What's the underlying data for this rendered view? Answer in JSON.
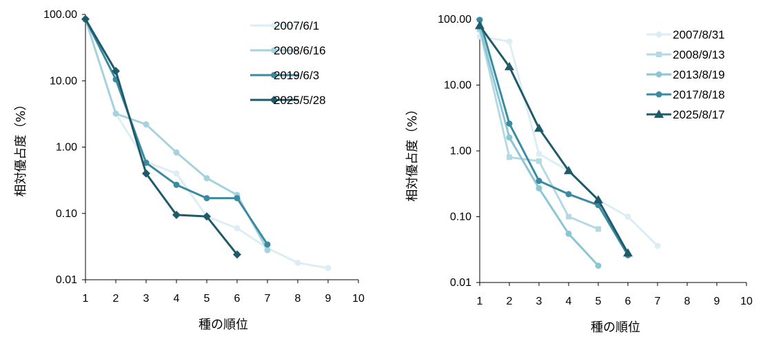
{
  "chart_data": [
    {
      "type": "line",
      "xlabel": "種の順位",
      "ylabel": "相対優占度（%）",
      "xlim": [
        1,
        10
      ],
      "ylim": [
        0.01,
        100
      ],
      "yscale": "log",
      "x_ticks": [
        "1",
        "2",
        "3",
        "4",
        "5",
        "6",
        "7",
        "8",
        "9",
        "10"
      ],
      "y_ticks": [
        "0.01",
        "0.10",
        "1.00",
        "10.00",
        "100.00"
      ],
      "grid": false,
      "legend_position": "top-right",
      "series": [
        {
          "name": "2007/6/1",
          "color": "#dceef3",
          "marker": "circle",
          "x": [
            1,
            2,
            3,
            4,
            5,
            6,
            7,
            8,
            9
          ],
          "y": [
            85,
            3.2,
            0.6,
            0.4,
            0.09,
            0.06,
            0.03,
            0.018,
            0.015
          ]
        },
        {
          "name": "2008/6/16",
          "color": "#a6d2de",
          "marker": "circle",
          "x": [
            1,
            2,
            3,
            4,
            5,
            6,
            7
          ],
          "y": [
            85,
            3.2,
            2.2,
            0.83,
            0.34,
            0.19,
            0.028
          ]
        },
        {
          "name": "2019/6/3",
          "color": "#3a8ba2",
          "marker": "circle",
          "x": [
            1,
            2,
            3,
            4,
            5,
            6,
            7
          ],
          "y": [
            85,
            10.5,
            0.58,
            0.27,
            0.17,
            0.17,
            0.034
          ]
        },
        {
          "name": "2025/5/28",
          "color": "#1e5a6a",
          "marker": "diamond",
          "x": [
            1,
            2,
            3,
            4,
            5,
            6
          ],
          "y": [
            85,
            14,
            0.4,
            0.095,
            0.09,
            0.024
          ]
        }
      ]
    },
    {
      "type": "line",
      "xlabel": "種の順位",
      "ylabel": "相対優占度（%）",
      "xlim": [
        1,
        10
      ],
      "ylim": [
        0.01,
        100
      ],
      "yscale": "log",
      "x_ticks": [
        "1",
        "2",
        "3",
        "4",
        "5",
        "6",
        "7",
        "8",
        "9",
        "10"
      ],
      "y_ticks": [
        "0.01",
        "0.10",
        "1.00",
        "10.00",
        "100.00"
      ],
      "grid": false,
      "legend_position": "top-right",
      "series": [
        {
          "name": "2007/8/31",
          "color": "#dceef3",
          "marker": "circle",
          "x": [
            1,
            2,
            3,
            4,
            5,
            6,
            7
          ],
          "y": [
            55,
            46,
            0.9,
            0.5,
            0.18,
            0.1,
            0.036
          ]
        },
        {
          "name": "2008/9/13",
          "color": "#b3dae4",
          "marker": "square",
          "x": [
            1,
            2,
            3,
            4,
            5
          ],
          "y": [
            70,
            0.8,
            0.7,
            0.1,
            0.065
          ]
        },
        {
          "name": "2013/8/19",
          "color": "#8ac6d4",
          "marker": "circle",
          "x": [
            1,
            2,
            3,
            4,
            5
          ],
          "y": [
            75,
            1.6,
            0.27,
            0.055,
            0.018
          ]
        },
        {
          "name": "2017/8/18",
          "color": "#3a8ba2",
          "marker": "circle",
          "x": [
            1,
            2,
            3,
            4,
            5,
            6
          ],
          "y": [
            98,
            2.6,
            0.35,
            0.22,
            0.15,
            0.026
          ]
        },
        {
          "name": "2025/8/17",
          "color": "#1e5a6a",
          "marker": "triangle",
          "x": [
            1,
            2,
            3,
            4,
            5,
            6
          ],
          "y": [
            80,
            19,
            2.2,
            0.5,
            0.18,
            0.028
          ]
        }
      ]
    }
  ]
}
